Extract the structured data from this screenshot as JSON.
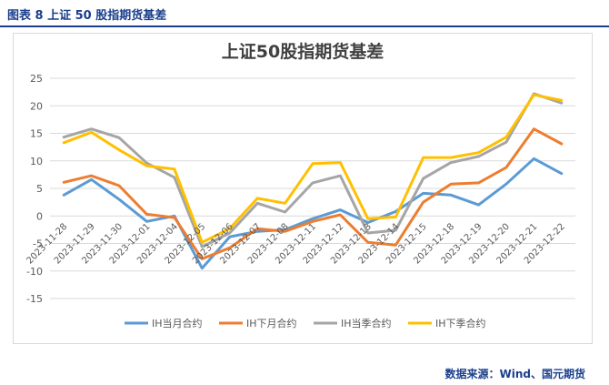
{
  "figure_caption": "图表 8 上证 50 股指期货基差",
  "source_note": "数据来源：Wind、国元期货",
  "colors": {
    "ih_current": "#5b9bd5",
    "ih_next": "#ed7d31",
    "ih_quarter": "#a5a5a5",
    "ih_next_quarter": "#ffc000",
    "grid": "#d9d9d9",
    "caption": "#1a3e8c"
  },
  "chart_data": {
    "type": "line",
    "title": "上证50股指期货基差",
    "xlabel": "",
    "ylabel": "",
    "ylim": [
      -15,
      25
    ],
    "yticks": [
      -15,
      -10,
      -5,
      0,
      5,
      10,
      15,
      20,
      25
    ],
    "grid": true,
    "legend_position": "bottom",
    "categories": [
      "2023-11-28",
      "2023-11-29",
      "2023-11-30",
      "2023-12-01",
      "2023-12-04",
      "2023-12-05",
      "2023-12-06",
      "2023-12-07",
      "2023-12-08",
      "2023-12-11",
      "2023-12-12",
      "2023-12-13",
      "2023-12-14",
      "2023-12-15",
      "2023-12-18",
      "2023-12-19",
      "2023-12-20",
      "2023-12-21",
      "2023-12-22"
    ],
    "series": [
      {
        "name": "IH当月合约",
        "color_key": "ih_current",
        "values": [
          3.8,
          6.6,
          3.0,
          -1.0,
          0.0,
          -9.5,
          -3.8,
          -2.8,
          -2.5,
          -0.5,
          1.1,
          -1.2,
          0.8,
          4.1,
          3.8,
          2.0,
          5.8,
          10.4,
          7.7
        ]
      },
      {
        "name": "IH下月合约",
        "color_key": "ih_next",
        "values": [
          6.1,
          7.3,
          5.5,
          0.3,
          -0.3,
          -7.8,
          -5.8,
          -2.3,
          -2.8,
          -1.0,
          0.2,
          -4.8,
          -5.3,
          2.5,
          5.8,
          6.0,
          8.8,
          15.8,
          13.1
        ]
      },
      {
        "name": "IH当季合约",
        "color_key": "ih_quarter",
        "values": [
          14.3,
          15.8,
          14.2,
          9.6,
          7.0,
          -5.6,
          -3.1,
          2.3,
          0.7,
          6.0,
          7.3,
          -3.1,
          -2.6,
          6.8,
          9.7,
          10.8,
          13.4,
          22.2,
          20.5
        ]
      },
      {
        "name": "IH下季合约",
        "color_key": "ih_next_quarter",
        "values": [
          13.3,
          15.2,
          12.0,
          9.1,
          8.5,
          -4.8,
          -2.3,
          3.2,
          2.3,
          9.5,
          9.7,
          -0.5,
          -0.2,
          10.6,
          10.6,
          11.5,
          14.3,
          22.0,
          21.0
        ]
      }
    ]
  }
}
